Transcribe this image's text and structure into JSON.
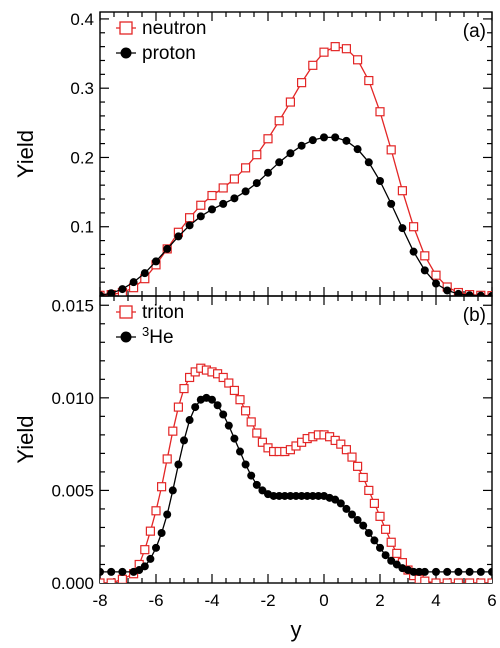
{
  "chart_data": [
    {
      "type": "line",
      "panel": "(a)",
      "xlabel": "",
      "ylabel": "Yield",
      "xlim": [
        -8,
        6
      ],
      "ylim": [
        0,
        0.41
      ],
      "yticks": [
        0.1,
        0.2,
        0.3,
        0.4
      ],
      "ytick_labels": [
        "0.1",
        "0.2",
        "0.3",
        "0.4"
      ],
      "legend_position": "top-left",
      "grid": false,
      "series": [
        {
          "name": "neutron",
          "color": "#e32626",
          "marker": "open-square",
          "x": [
            -8.0,
            -7.6,
            -7.2,
            -6.8,
            -6.4,
            -6.0,
            -5.6,
            -5.2,
            -4.8,
            -4.4,
            -4.0,
            -3.6,
            -3.2,
            -2.8,
            -2.4,
            -2.0,
            -1.6,
            -1.2,
            -0.8,
            -0.4,
            0.0,
            0.4,
            0.8,
            1.2,
            1.6,
            2.0,
            2.4,
            2.8,
            3.2,
            3.6,
            4.0,
            4.4,
            4.8,
            5.2,
            5.6,
            6.0
          ],
          "values": [
            0.001,
            0.002,
            0.005,
            0.012,
            0.025,
            0.045,
            0.068,
            0.092,
            0.113,
            0.131,
            0.145,
            0.156,
            0.169,
            0.185,
            0.204,
            0.227,
            0.253,
            0.28,
            0.308,
            0.333,
            0.352,
            0.36,
            0.357,
            0.341,
            0.311,
            0.266,
            0.211,
            0.152,
            0.1,
            0.058,
            0.03,
            0.013,
            0.005,
            0.002,
            0.001,
            0.0005
          ]
        },
        {
          "name": "proton",
          "color": "#000000",
          "marker": "filled-circle",
          "x": [
            -8.0,
            -7.6,
            -7.2,
            -6.8,
            -6.4,
            -6.0,
            -5.6,
            -5.2,
            -4.8,
            -4.4,
            -4.0,
            -3.6,
            -3.2,
            -2.8,
            -2.4,
            -2.0,
            -1.6,
            -1.2,
            -0.8,
            -0.4,
            0.0,
            0.4,
            0.8,
            1.2,
            1.6,
            2.0,
            2.4,
            2.8,
            3.2,
            3.6,
            4.0,
            4.4,
            4.8,
            5.2,
            5.6,
            6.0
          ],
          "values": [
            0.001,
            0.004,
            0.01,
            0.02,
            0.033,
            0.05,
            0.068,
            0.086,
            0.102,
            0.115,
            0.125,
            0.133,
            0.141,
            0.151,
            0.163,
            0.178,
            0.193,
            0.206,
            0.217,
            0.225,
            0.229,
            0.229,
            0.224,
            0.212,
            0.193,
            0.166,
            0.133,
            0.098,
            0.064,
            0.037,
            0.018,
            0.008,
            0.003,
            0.001,
            0.0005,
            0.0002
          ]
        }
      ]
    },
    {
      "type": "line",
      "panel": "(b)",
      "xlabel": "y",
      "ylabel": "Yield",
      "xlim": [
        -8,
        6
      ],
      "ylim": [
        0,
        0.0155
      ],
      "xticks": [
        -8,
        -6,
        -4,
        -2,
        0,
        2,
        4,
        6
      ],
      "xtick_labels": [
        "-8",
        "-6",
        "-4",
        "-2",
        "0",
        "2",
        "4",
        "6"
      ],
      "yticks": [
        0.0,
        0.005,
        0.01,
        0.015
      ],
      "ytick_labels": [
        "0.000",
        "0.005",
        "0.010",
        "0.015"
      ],
      "legend_position": "top-left",
      "grid": false,
      "series": [
        {
          "name": "triton",
          "color": "#e32626",
          "marker": "open-square",
          "x": [
            -8.0,
            -7.6,
            -7.2,
            -6.8,
            -6.6,
            -6.4,
            -6.2,
            -6.0,
            -5.8,
            -5.6,
            -5.4,
            -5.2,
            -5.0,
            -4.8,
            -4.6,
            -4.4,
            -4.2,
            -4.0,
            -3.8,
            -3.6,
            -3.4,
            -3.2,
            -3.0,
            -2.8,
            -2.6,
            -2.4,
            -2.2,
            -2.0,
            -1.8,
            -1.6,
            -1.4,
            -1.2,
            -1.0,
            -0.8,
            -0.6,
            -0.4,
            -0.2,
            0.0,
            0.2,
            0.4,
            0.6,
            0.8,
            1.0,
            1.2,
            1.4,
            1.6,
            1.8,
            2.0,
            2.2,
            2.4,
            2.6,
            2.8,
            3.0,
            3.2,
            3.4,
            3.6,
            4.0,
            4.4,
            4.8,
            5.2,
            5.6,
            6.0
          ],
          "values": [
            0.0,
            0.0,
            0.0002,
            0.0005,
            0.001,
            0.0018,
            0.0028,
            0.0039,
            0.0052,
            0.0067,
            0.0082,
            0.0095,
            0.0105,
            0.0111,
            0.0114,
            0.0116,
            0.0115,
            0.0114,
            0.0113,
            0.0111,
            0.0108,
            0.0104,
            0.0099,
            0.0093,
            0.0087,
            0.0081,
            0.0076,
            0.0073,
            0.0071,
            0.0071,
            0.0071,
            0.0072,
            0.0074,
            0.0076,
            0.0078,
            0.0079,
            0.008,
            0.008,
            0.0079,
            0.0077,
            0.0075,
            0.0072,
            0.0068,
            0.0063,
            0.0057,
            0.005,
            0.0043,
            0.0036,
            0.0029,
            0.0022,
            0.0016,
            0.0011,
            0.0007,
            0.0004,
            0.0002,
            0.0001,
            0.0,
            0.0,
            0.0,
            0.0,
            0.0,
            0.0
          ]
        },
        {
          "name": "³He",
          "color": "#000000",
          "marker": "filled-circle",
          "x": [
            -8.0,
            -7.6,
            -7.2,
            -6.8,
            -6.6,
            -6.4,
            -6.2,
            -6.0,
            -5.8,
            -5.6,
            -5.4,
            -5.2,
            -5.0,
            -4.8,
            -4.6,
            -4.4,
            -4.2,
            -4.0,
            -3.8,
            -3.6,
            -3.4,
            -3.2,
            -3.0,
            -2.8,
            -2.6,
            -2.4,
            -2.2,
            -2.0,
            -1.8,
            -1.6,
            -1.4,
            -1.2,
            -1.0,
            -0.8,
            -0.6,
            -0.4,
            -0.2,
            0.0,
            0.2,
            0.4,
            0.6,
            0.8,
            1.0,
            1.2,
            1.4,
            1.6,
            1.8,
            2.0,
            2.2,
            2.4,
            2.6,
            2.8,
            3.0,
            3.2,
            3.4,
            3.6,
            4.0,
            4.4,
            4.8,
            5.2,
            5.6,
            6.0
          ],
          "values": [
            0.0006,
            0.0006,
            0.0006,
            0.0006,
            0.0007,
            0.0009,
            0.0013,
            0.0019,
            0.0027,
            0.0037,
            0.005,
            0.0064,
            0.0077,
            0.0088,
            0.0095,
            0.0099,
            0.01,
            0.0099,
            0.0096,
            0.0091,
            0.0085,
            0.0078,
            0.0071,
            0.0064,
            0.0058,
            0.0053,
            0.005,
            0.0048,
            0.0047,
            0.0047,
            0.0047,
            0.0047,
            0.0047,
            0.0047,
            0.0047,
            0.0047,
            0.0047,
            0.0047,
            0.0046,
            0.0045,
            0.0043,
            0.004,
            0.0037,
            0.0034,
            0.0031,
            0.0027,
            0.0023,
            0.0019,
            0.0015,
            0.0012,
            0.001,
            0.0008,
            0.0007,
            0.0006,
            0.0006,
            0.0006,
            0.0006,
            0.0006,
            0.0006,
            0.0006,
            0.0006,
            0.0006
          ]
        }
      ]
    }
  ]
}
